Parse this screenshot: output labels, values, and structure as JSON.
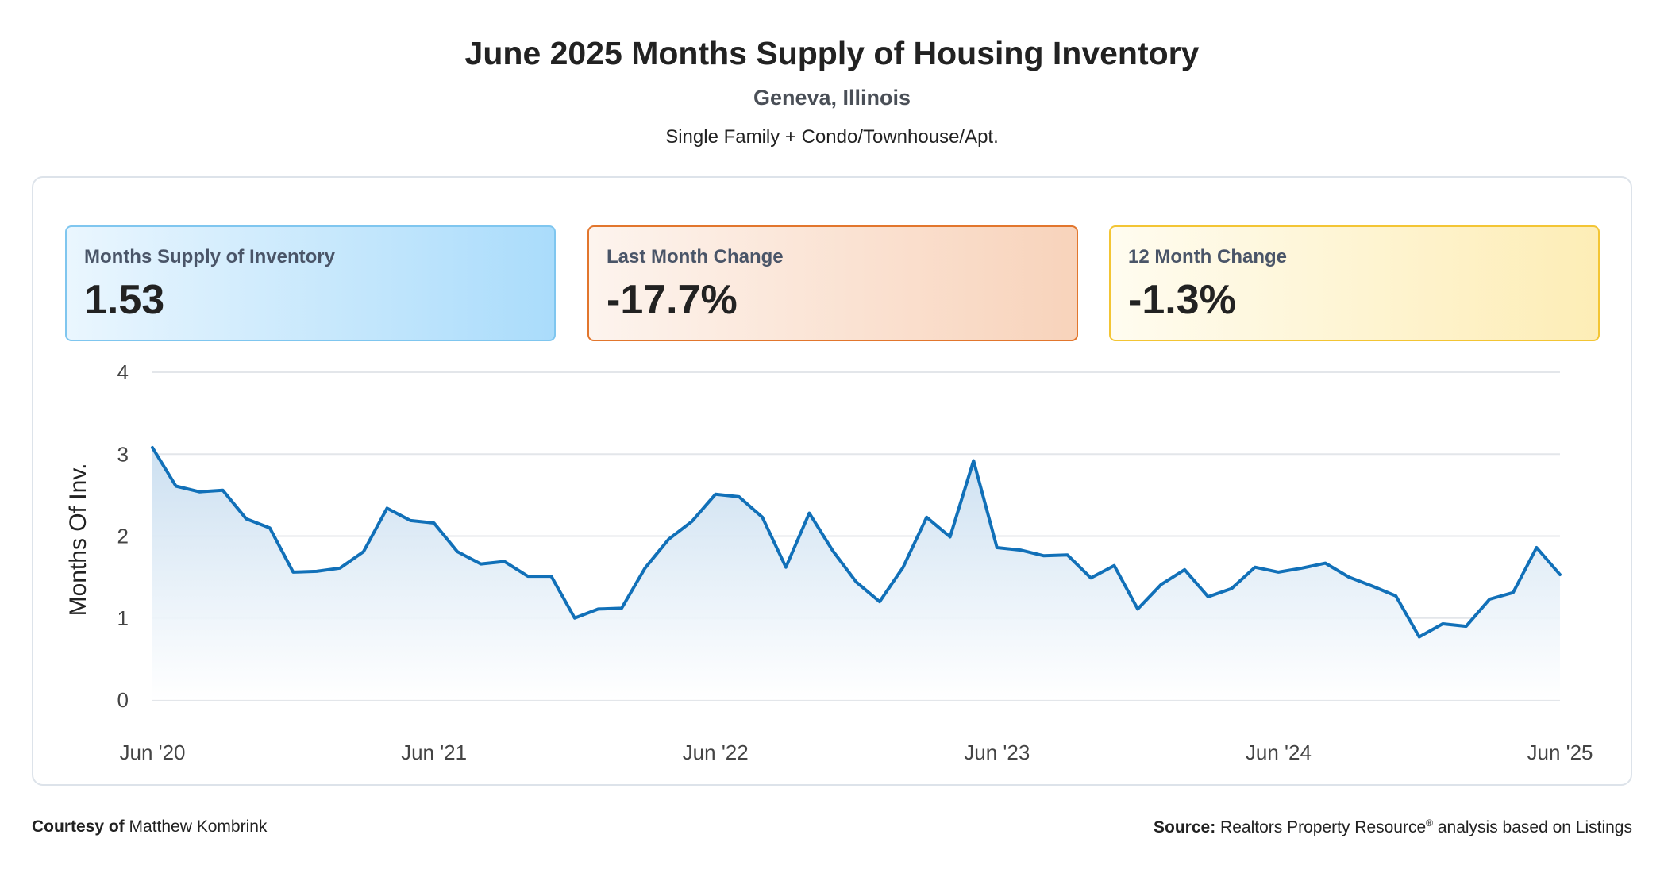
{
  "header": {
    "title": "June 2025 Months Supply of Housing Inventory",
    "location": "Geneva, Illinois",
    "property_types": "Single Family + Condo/Townhouse/Apt."
  },
  "cards": [
    {
      "label": "Months Supply of Inventory",
      "value": "1.53"
    },
    {
      "label": "Last Month Change",
      "value": "-17.7%"
    },
    {
      "label": "12 Month Change",
      "value": "-1.3%"
    }
  ],
  "colors": {
    "line": "#1170b8",
    "area_top": "#c9def0",
    "grid": "#e3e6ea",
    "card1_border": "#7fc6ef",
    "card2_border": "#e2762d",
    "card3_border": "#f3c534"
  },
  "chart_data": {
    "type": "area",
    "title": "June 2025 Months Supply of Housing Inventory",
    "ylabel": "Months Of Inv.",
    "xlabel": "",
    "ylim": [
      0,
      4
    ],
    "yticks": [
      "0",
      "1",
      "2",
      "3",
      "4"
    ],
    "xtick_labels": [
      "Jun '20",
      "Jun '21",
      "Jun '22",
      "Jun '23",
      "Jun '24",
      "Jun '25"
    ],
    "grid": true,
    "series": [
      {
        "name": "Months Supply of Inventory",
        "x": [
          "2020-06",
          "2020-07",
          "2020-08",
          "2020-09",
          "2020-10",
          "2020-11",
          "2020-12",
          "2021-01",
          "2021-02",
          "2021-03",
          "2021-04",
          "2021-05",
          "2021-06",
          "2021-07",
          "2021-08",
          "2021-09",
          "2021-10",
          "2021-11",
          "2021-12",
          "2022-01",
          "2022-02",
          "2022-03",
          "2022-04",
          "2022-05",
          "2022-06",
          "2022-07",
          "2022-08",
          "2022-09",
          "2022-10",
          "2022-11",
          "2022-12",
          "2023-01",
          "2023-02",
          "2023-03",
          "2023-04",
          "2023-05",
          "2023-06",
          "2023-07",
          "2023-08",
          "2023-09",
          "2023-10",
          "2023-11",
          "2023-12",
          "2024-01",
          "2024-02",
          "2024-03",
          "2024-04",
          "2024-05",
          "2024-06",
          "2024-07",
          "2024-08",
          "2024-09",
          "2024-10",
          "2024-11",
          "2024-12",
          "2025-01",
          "2025-02",
          "2025-03",
          "2025-04",
          "2025-05",
          "2025-06"
        ],
        "values": [
          3.08,
          2.61,
          2.54,
          2.56,
          2.21,
          2.1,
          1.56,
          1.57,
          1.61,
          1.81,
          2.34,
          2.19,
          2.16,
          1.81,
          1.66,
          1.69,
          1.51,
          1.51,
          1.0,
          1.11,
          1.12,
          1.61,
          1.96,
          2.18,
          2.51,
          2.48,
          2.23,
          1.62,
          2.28,
          1.82,
          1.44,
          1.2,
          1.62,
          2.23,
          1.99,
          2.92,
          1.86,
          1.83,
          1.76,
          1.77,
          1.49,
          1.64,
          1.11,
          1.41,
          1.59,
          1.26,
          1.36,
          1.62,
          1.56,
          1.61,
          1.67,
          1.5,
          1.39,
          1.27,
          0.77,
          0.93,
          0.9,
          1.23,
          1.31,
          1.86,
          1.53
        ]
      }
    ]
  },
  "footer": {
    "courtesy_prefix": "Courtesy of",
    "courtesy_name": "Matthew Kombrink",
    "source_prefix": "Source:",
    "source_text": "Realtors Property Resource",
    "source_suffix": " analysis based on Listings",
    "registered_mark": "®"
  }
}
